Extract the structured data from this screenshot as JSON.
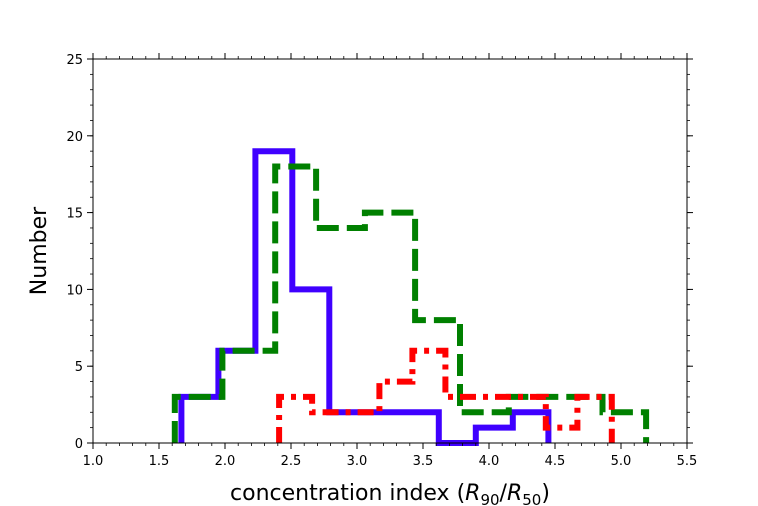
{
  "chart_data": {
    "type": "histogram-step",
    "xlabel": "concentration index (R90/R50)",
    "xlabel_parts": {
      "prefix": "concentration index (",
      "r1": "R",
      "s1": "90",
      "slash": "/",
      "r2": "R",
      "s2": "50",
      "suffix": ")"
    },
    "ylabel": "Number",
    "xlim": [
      1.0,
      5.5
    ],
    "ylim": [
      0,
      25
    ],
    "xticks": [
      "1.0",
      "1.5",
      "2.0",
      "2.5",
      "3.0",
      "3.5",
      "4.0",
      "4.5",
      "5.0",
      "5.5"
    ],
    "yticks": [
      "0",
      "5",
      "10",
      "15",
      "20",
      "25"
    ],
    "grid": false,
    "legend": "none",
    "series": [
      {
        "color": "#3f00ff",
        "style": "solid",
        "edges": [
          1.67,
          1.95,
          2.23,
          2.51,
          2.79,
          3.07,
          3.35,
          3.62,
          3.9,
          4.18,
          4.45
        ],
        "counts": [
          3,
          6,
          19,
          10,
          2,
          2,
          2,
          0,
          1,
          2
        ]
      },
      {
        "color": "#008000",
        "style": "dashed",
        "edges": [
          1.62,
          1.98,
          2.38,
          2.69,
          3.06,
          3.44,
          3.78,
          4.15,
          4.52,
          4.86,
          5.19
        ],
        "counts": [
          3,
          6,
          18,
          14,
          15,
          8,
          2,
          3,
          3,
          2
        ]
      },
      {
        "color": "#ff0000",
        "style": "dashdot",
        "edges": [
          2.41,
          2.66,
          2.91,
          3.17,
          3.42,
          3.67,
          3.92,
          4.17,
          4.43,
          4.67,
          4.93
        ],
        "counts": [
          3,
          2,
          2,
          4,
          6,
          3,
          3,
          3,
          1,
          3
        ]
      }
    ]
  }
}
